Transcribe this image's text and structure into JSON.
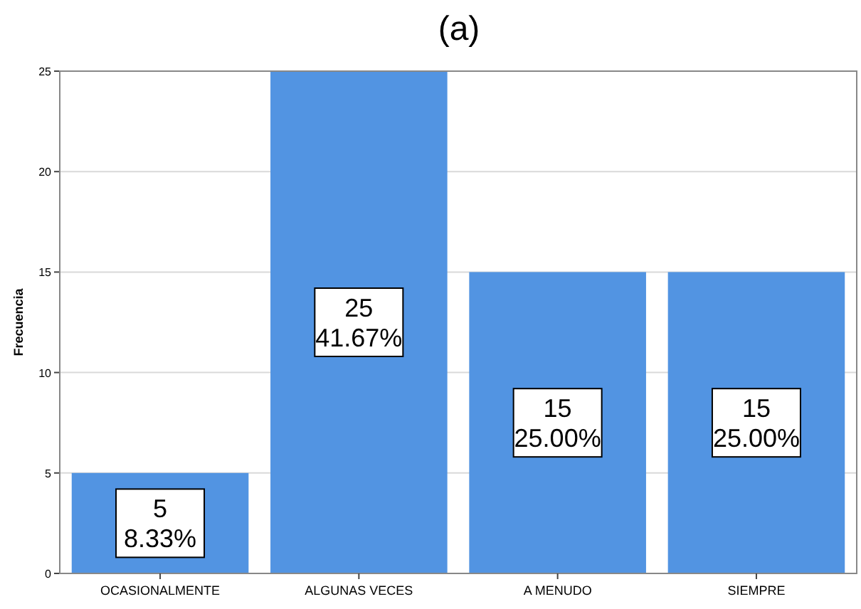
{
  "chart_data": {
    "type": "bar",
    "title": "(a)",
    "ylabel": "Frecuencia",
    "categories": [
      "OCASIONALMENTE",
      "ALGUNAS VECES",
      "A MENUDO",
      "SIEMPRE"
    ],
    "values": [
      5,
      25,
      15,
      15
    ],
    "color": "#5294e2",
    "value_labels": [
      "5\n8.33%",
      "25\n41.67%",
      "15\n25.00%",
      "15\n25.00%"
    ],
    "ylim": [
      0,
      25
    ],
    "yticks": [
      0,
      5,
      10,
      15,
      20,
      25
    ],
    "grid": "y"
  }
}
